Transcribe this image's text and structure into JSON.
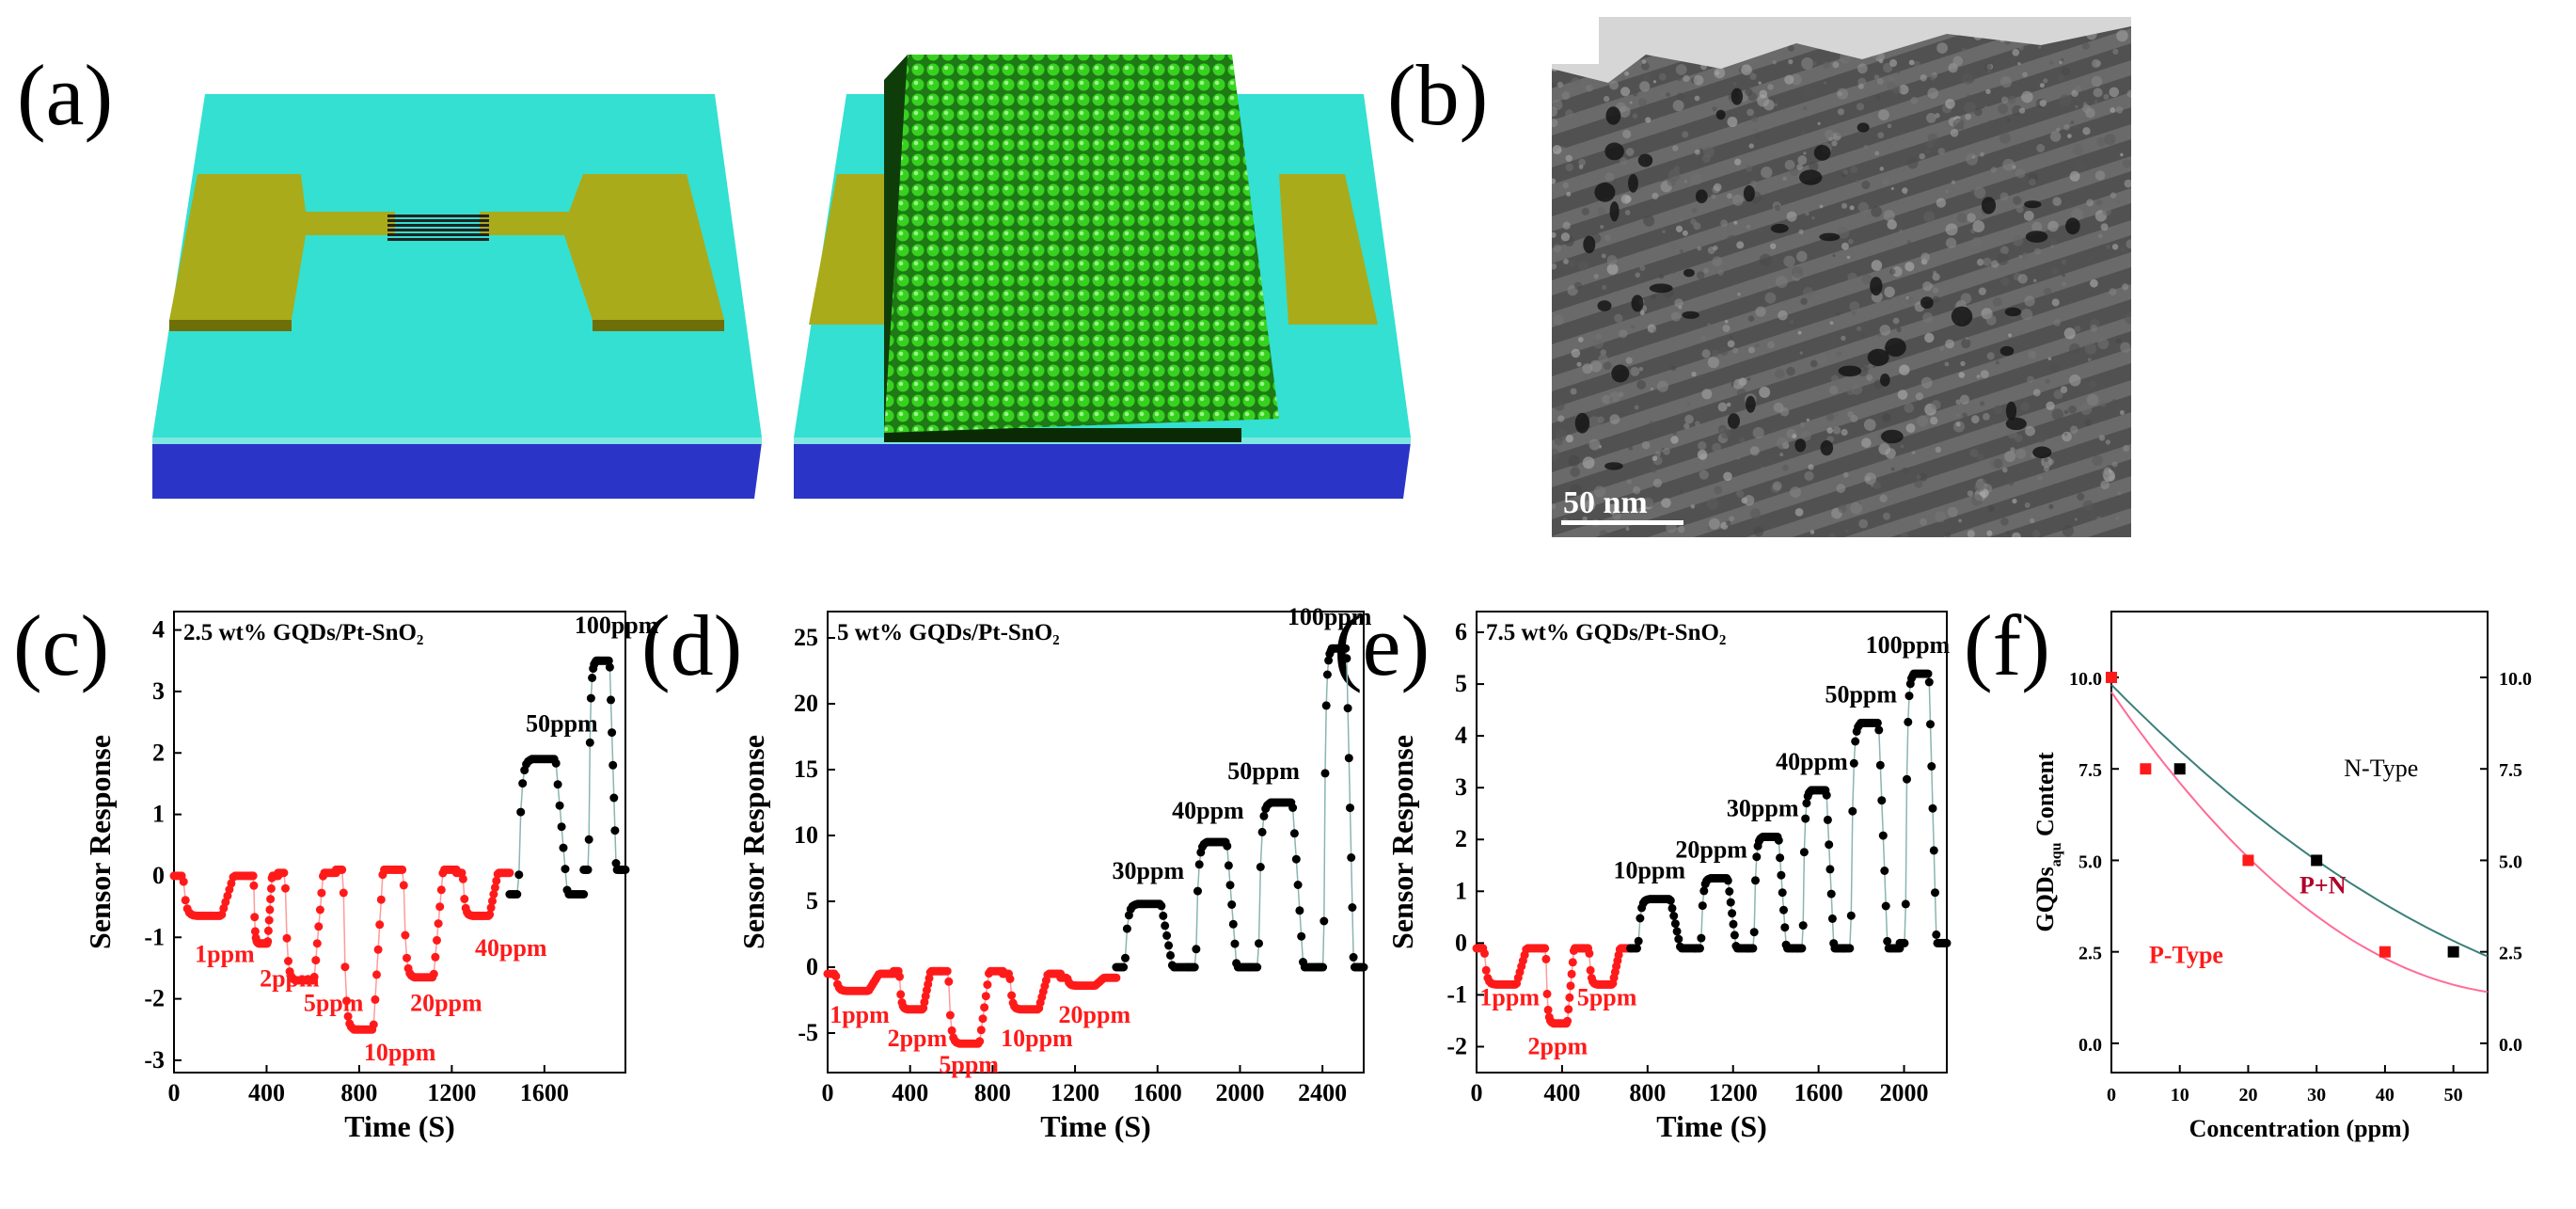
{
  "figure": {
    "panel_labels": {
      "a": "(a)",
      "b": "(b)",
      "c": "(c)",
      "d": "(d)",
      "e": "(e)",
      "f": "(f)"
    },
    "scale_bar_label": "50 nm"
  },
  "colors": {
    "substrate_top": "#33e0d2",
    "substrate_base": "#2a35c8",
    "electrode": "#a9ab1a",
    "film": "#2fb61e",
    "p_type": "#ff1a1a",
    "n_type": "#000000",
    "n_fit": "#3a7f7a",
    "p_fit": "#ff6b96"
  },
  "chart_data": [
    {
      "id": "c",
      "type": "scatter",
      "title": "2.5 wt% GQDs/Pt-SnO₂",
      "xlabel": "Time (S)",
      "ylabel": "Sensor Response",
      "xlim": [
        0,
        1950
      ],
      "ylim": [
        -3.2,
        4.3
      ],
      "xticks": [
        0,
        400,
        800,
        1200,
        1600
      ],
      "yticks": [
        -3,
        -2,
        -1,
        0,
        1,
        2,
        3,
        4
      ],
      "segments": [
        {
          "type": "neg",
          "start": 0,
          "end": 330,
          "base": 0,
          "level": -0.65,
          "label": "1ppm"
        },
        {
          "type": "neg",
          "start": 330,
          "end": 450,
          "base": 0,
          "level": -1.1,
          "label": "2ppm"
        },
        {
          "type": "neg",
          "start": 450,
          "end": 700,
          "base": 0.05,
          "level": -1.7,
          "label": "5ppm"
        },
        {
          "type": "neg",
          "start": 700,
          "end": 960,
          "base": 0.1,
          "level": -2.5,
          "label": "10ppm"
        },
        {
          "type": "neg",
          "start": 960,
          "end": 1220,
          "base": 0.1,
          "level": -1.65,
          "label": "20ppm"
        },
        {
          "type": "neg",
          "start": 1220,
          "end": 1450,
          "base": 0.05,
          "level": -0.65,
          "label": "40ppm"
        },
        {
          "type": "pos",
          "start": 1450,
          "end": 1770,
          "base": -0.3,
          "level": 1.9,
          "label": "50ppm"
        },
        {
          "type": "pos",
          "start": 1770,
          "end": 1950,
          "base": 0.1,
          "level": 3.5,
          "label": "100ppm"
        }
      ],
      "labels": [
        {
          "text": "1ppm",
          "x": 90,
          "y": -1.4,
          "color": "p"
        },
        {
          "text": "2ppm",
          "x": 370,
          "y": -1.8,
          "color": "p"
        },
        {
          "text": "5ppm",
          "x": 560,
          "y": -2.2,
          "color": "p"
        },
        {
          "text": "10ppm",
          "x": 820,
          "y": -3.0,
          "color": "p"
        },
        {
          "text": "20ppm",
          "x": 1020,
          "y": -2.2,
          "color": "p"
        },
        {
          "text": "40ppm",
          "x": 1300,
          "y": -1.3,
          "color": "p"
        },
        {
          "text": "50ppm",
          "x": 1520,
          "y": 2.35,
          "color": "n"
        },
        {
          "text": "100ppm",
          "x": 1730,
          "y": 3.95,
          "color": "n"
        }
      ]
    },
    {
      "id": "d",
      "type": "scatter",
      "title": "5 wt% GQDs/Pt-SnO₂",
      "xlabel": "Time (S)",
      "ylabel": "Sensor Response",
      "xlim": [
        0,
        2600
      ],
      "ylim": [
        -8,
        27
      ],
      "xticks": [
        0,
        400,
        800,
        1200,
        1600,
        2000,
        2400
      ],
      "yticks": [
        -5,
        0,
        5,
        10,
        15,
        20,
        25
      ],
      "segments": [
        {
          "type": "neg",
          "start": 0,
          "end": 320,
          "base": -0.5,
          "level": -1.8,
          "label": "1ppm"
        },
        {
          "type": "neg",
          "start": 320,
          "end": 550,
          "base": -0.3,
          "level": -3.2,
          "label": "2ppm"
        },
        {
          "type": "neg",
          "start": 550,
          "end": 850,
          "base": -0.3,
          "level": -5.8,
          "label": "5ppm"
        },
        {
          "type": "neg",
          "start": 850,
          "end": 1130,
          "base": -0.5,
          "level": -3.2,
          "label": "10ppm"
        },
        {
          "type": "neg",
          "start": 1130,
          "end": 1400,
          "base": -0.8,
          "level": -1.4,
          "label": "20ppm"
        },
        {
          "type": "pos",
          "start": 1400,
          "end": 1750,
          "base": 0,
          "level": 4.8,
          "label": "30ppm"
        },
        {
          "type": "pos",
          "start": 1750,
          "end": 2050,
          "base": 0,
          "level": 9.5,
          "label": "40ppm"
        },
        {
          "type": "pos",
          "start": 2050,
          "end": 2380,
          "base": 0,
          "level": 12.5,
          "label": "50ppm"
        },
        {
          "type": "pos",
          "start": 2380,
          "end": 2600,
          "base": 0,
          "level": 24.2,
          "label": "100ppm"
        }
      ],
      "labels": [
        {
          "text": "1ppm",
          "x": 10,
          "y": -4.2,
          "color": "p"
        },
        {
          "text": "2ppm",
          "x": 290,
          "y": -6.0,
          "color": "p"
        },
        {
          "text": "5ppm",
          "x": 540,
          "y": -8.0,
          "color": "p"
        },
        {
          "text": "10ppm",
          "x": 840,
          "y": -6.0,
          "color": "p"
        },
        {
          "text": "20ppm",
          "x": 1120,
          "y": -4.2,
          "color": "p"
        },
        {
          "text": "30ppm",
          "x": 1380,
          "y": 6.7,
          "color": "n"
        },
        {
          "text": "40ppm",
          "x": 1670,
          "y": 11.3,
          "color": "n"
        },
        {
          "text": "50ppm",
          "x": 1940,
          "y": 14.3,
          "color": "n"
        },
        {
          "text": "100ppm",
          "x": 2230,
          "y": 26.0,
          "color": "n"
        }
      ]
    },
    {
      "id": "e",
      "type": "scatter",
      "title": "7.5 wt% GQDs/Pt-SnO₂",
      "xlabel": "Time (S)",
      "ylabel": "Sensor Response",
      "xlim": [
        0,
        2200
      ],
      "ylim": [
        -2.5,
        6.4
      ],
      "xticks": [
        0,
        400,
        800,
        1200,
        1600,
        2000
      ],
      "yticks": [
        -2,
        -1,
        0,
        1,
        2,
        3,
        4,
        5,
        6
      ],
      "segments": [
        {
          "type": "neg",
          "start": 0,
          "end": 300,
          "base": -0.1,
          "level": -0.8,
          "label": "1ppm"
        },
        {
          "type": "neg",
          "start": 300,
          "end": 500,
          "base": -0.1,
          "level": -1.55,
          "label": "2ppm"
        },
        {
          "type": "neg",
          "start": 500,
          "end": 720,
          "base": -0.1,
          "level": -0.8,
          "label": "5ppm"
        },
        {
          "type": "pos",
          "start": 720,
          "end": 1020,
          "base": -0.1,
          "level": 0.85,
          "label": "10ppm"
        },
        {
          "type": "pos",
          "start": 1020,
          "end": 1270,
          "base": -0.1,
          "level": 1.25,
          "label": "20ppm"
        },
        {
          "type": "pos",
          "start": 1270,
          "end": 1500,
          "base": -0.1,
          "level": 2.05,
          "label": "30ppm"
        },
        {
          "type": "pos",
          "start": 1500,
          "end": 1720,
          "base": -0.1,
          "level": 2.95,
          "label": "40ppm"
        },
        {
          "type": "pos",
          "start": 1720,
          "end": 1980,
          "base": -0.1,
          "level": 4.25,
          "label": "50ppm"
        },
        {
          "type": "pos",
          "start": 1980,
          "end": 2200,
          "base": 0,
          "level": 5.2,
          "label": "100ppm"
        }
      ],
      "labels": [
        {
          "text": "1ppm",
          "x": 15,
          "y": -1.2,
          "color": "p"
        },
        {
          "text": "2ppm",
          "x": 240,
          "y": -2.15,
          "color": "p"
        },
        {
          "text": "5ppm",
          "x": 470,
          "y": -1.2,
          "color": "p"
        },
        {
          "text": "10ppm",
          "x": 640,
          "y": 1.25,
          "color": "n"
        },
        {
          "text": "20ppm",
          "x": 930,
          "y": 1.65,
          "color": "n"
        },
        {
          "text": "30ppm",
          "x": 1170,
          "y": 2.45,
          "color": "n"
        },
        {
          "text": "40ppm",
          "x": 1400,
          "y": 3.35,
          "color": "n"
        },
        {
          "text": "50ppm",
          "x": 1630,
          "y": 4.65,
          "color": "n"
        },
        {
          "text": "100ppm",
          "x": 1820,
          "y": 5.6,
          "color": "n"
        }
      ]
    },
    {
      "id": "f",
      "type": "scatter",
      "title": "",
      "xlabel": "Concentration (ppm)",
      "ylabel": "GQDs",
      "ylabel_sub": "aqu",
      "ylabel_suffix": " Content",
      "xlim": [
        0,
        55
      ],
      "ylim": [
        -0.8,
        11.8
      ],
      "xticks": [
        0,
        10,
        20,
        30,
        40,
        50
      ],
      "yticks": [
        0.0,
        2.5,
        5.0,
        7.5,
        10.0
      ],
      "ytick_labels": [
        "0.0",
        "2.5",
        "5.0",
        "7.5",
        "10.0"
      ],
      "series": [
        {
          "name": "N-Type",
          "x": [
            10,
            30,
            50
          ],
          "y": [
            7.5,
            5.0,
            2.5
          ]
        },
        {
          "name": "P-Type",
          "x": [
            0,
            5,
            20,
            40
          ],
          "y": [
            10.0,
            7.5,
            5.0,
            2.5
          ]
        }
      ],
      "fits": [
        {
          "name": "N fit",
          "coef": [
            9.8,
            -0.19,
            0.001
          ]
        },
        {
          "name": "P fit",
          "coef": [
            9.6,
            -0.27,
            0.0022
          ]
        }
      ],
      "annotations": [
        {
          "text": "N-Type",
          "x": 34,
          "y": 7.3,
          "color": "n"
        },
        {
          "text": "P+N",
          "x": 27.5,
          "y": 4.1,
          "color": "mix"
        },
        {
          "text": "P-Type",
          "x": 5.5,
          "y": 2.2,
          "color": "p"
        }
      ]
    }
  ]
}
